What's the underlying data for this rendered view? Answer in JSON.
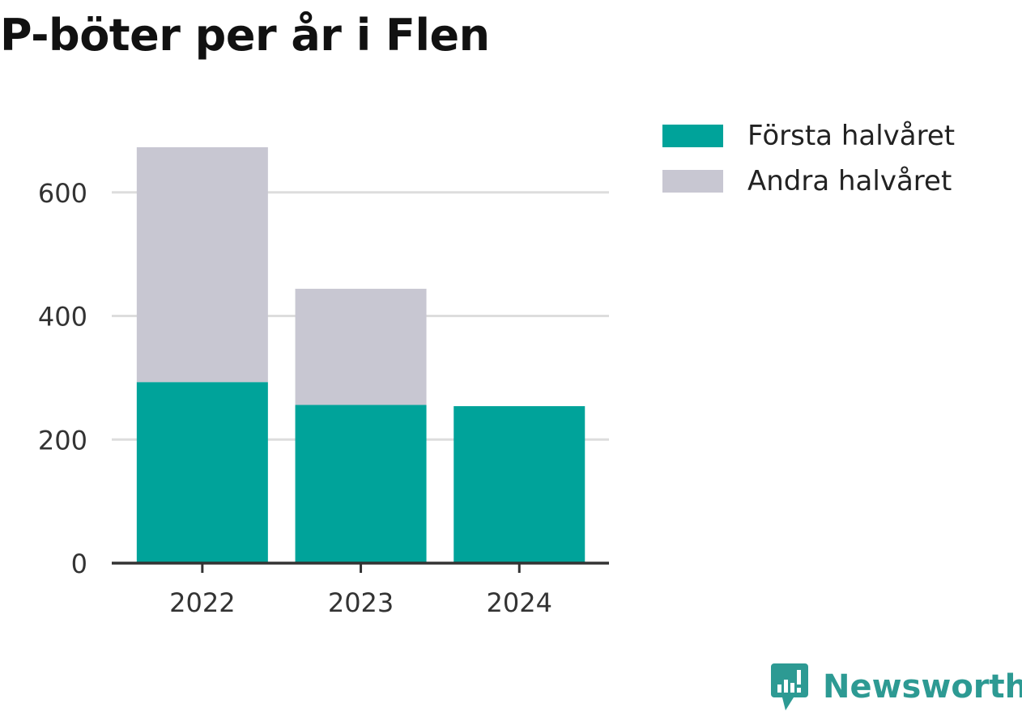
{
  "chart_data": {
    "type": "bar",
    "stacked": true,
    "title": "P-böter per år i Flen",
    "categories": [
      "2022",
      "2023",
      "2024"
    ],
    "series": [
      {
        "name": "Första halvåret",
        "values": [
          293,
          256,
          254
        ],
        "color": "#00a39a"
      },
      {
        "name": "Andra halvåret",
        "values": [
          380,
          188,
          0
        ],
        "color": "#c8c7d2"
      }
    ],
    "ylim": [
      0,
      673
    ],
    "yticks": [
      0,
      200,
      400,
      600
    ],
    "grid": true,
    "legend_position": "right"
  },
  "colors": {
    "gridline": "#dddddd",
    "axis": "#333333",
    "brand": "#2d9a93"
  },
  "brand": {
    "name": "Newsworthy",
    "icon": "newsworthy-logo-icon"
  }
}
